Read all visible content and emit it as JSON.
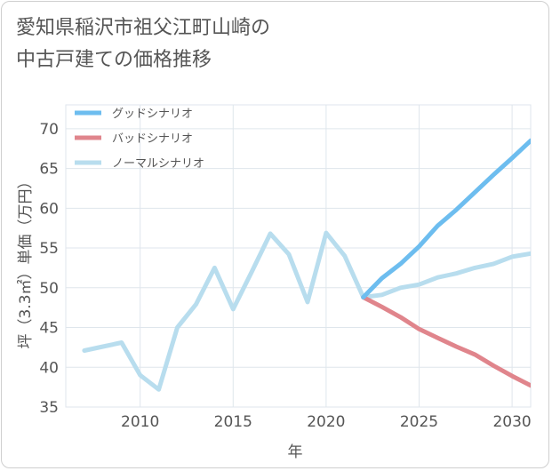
{
  "chart_data": {
    "type": "line",
    "title_lines": [
      "愛知県稲沢市祖父江町山崎の",
      "中古戸建ての価格推移"
    ],
    "xlabel": "年",
    "ylabel": "坪（3.3㎡）単価（万円）",
    "xlim": [
      2006,
      2031
    ],
    "ylim": [
      35,
      73
    ],
    "xticks": [
      2010,
      2015,
      2020,
      2025,
      2030
    ],
    "yticks": [
      35,
      40,
      45,
      50,
      55,
      60,
      65,
      70
    ],
    "grid": true,
    "legend_position": "top-left",
    "series": [
      {
        "name": "グッドシナリオ",
        "color": "#6dbdef",
        "x": [
          2022,
          2023,
          2024,
          2025,
          2026,
          2027,
          2028,
          2029,
          2030,
          2031
        ],
        "values": [
          48.8,
          51.2,
          53.0,
          55.2,
          57.8,
          59.8,
          62.0,
          64.2,
          66.3,
          68.5
        ]
      },
      {
        "name": "バッドシナリオ",
        "color": "#e0858c",
        "x": [
          2022,
          2023,
          2024,
          2025,
          2026,
          2027,
          2028,
          2029,
          2030,
          2031
        ],
        "values": [
          48.8,
          47.6,
          46.3,
          44.8,
          43.7,
          42.6,
          41.6,
          40.2,
          38.9,
          37.7
        ]
      },
      {
        "name": "ノーマルシナリオ",
        "color": "#b8ddee",
        "x": [
          2007,
          2008,
          2009,
          2010,
          2011,
          2012,
          2013,
          2014,
          2015,
          2016,
          2017,
          2018,
          2019,
          2020,
          2021,
          2022,
          2023,
          2024,
          2025,
          2026,
          2027,
          2028,
          2029,
          2030,
          2031
        ],
        "values": [
          42.1,
          42.6,
          43.1,
          39.0,
          37.2,
          45.0,
          47.9,
          52.5,
          47.3,
          52.0,
          56.8,
          54.2,
          48.2,
          56.9,
          54.0,
          48.8,
          49.1,
          50.0,
          50.4,
          51.3,
          51.8,
          52.5,
          53.0,
          53.9,
          54.3
        ]
      }
    ]
  }
}
